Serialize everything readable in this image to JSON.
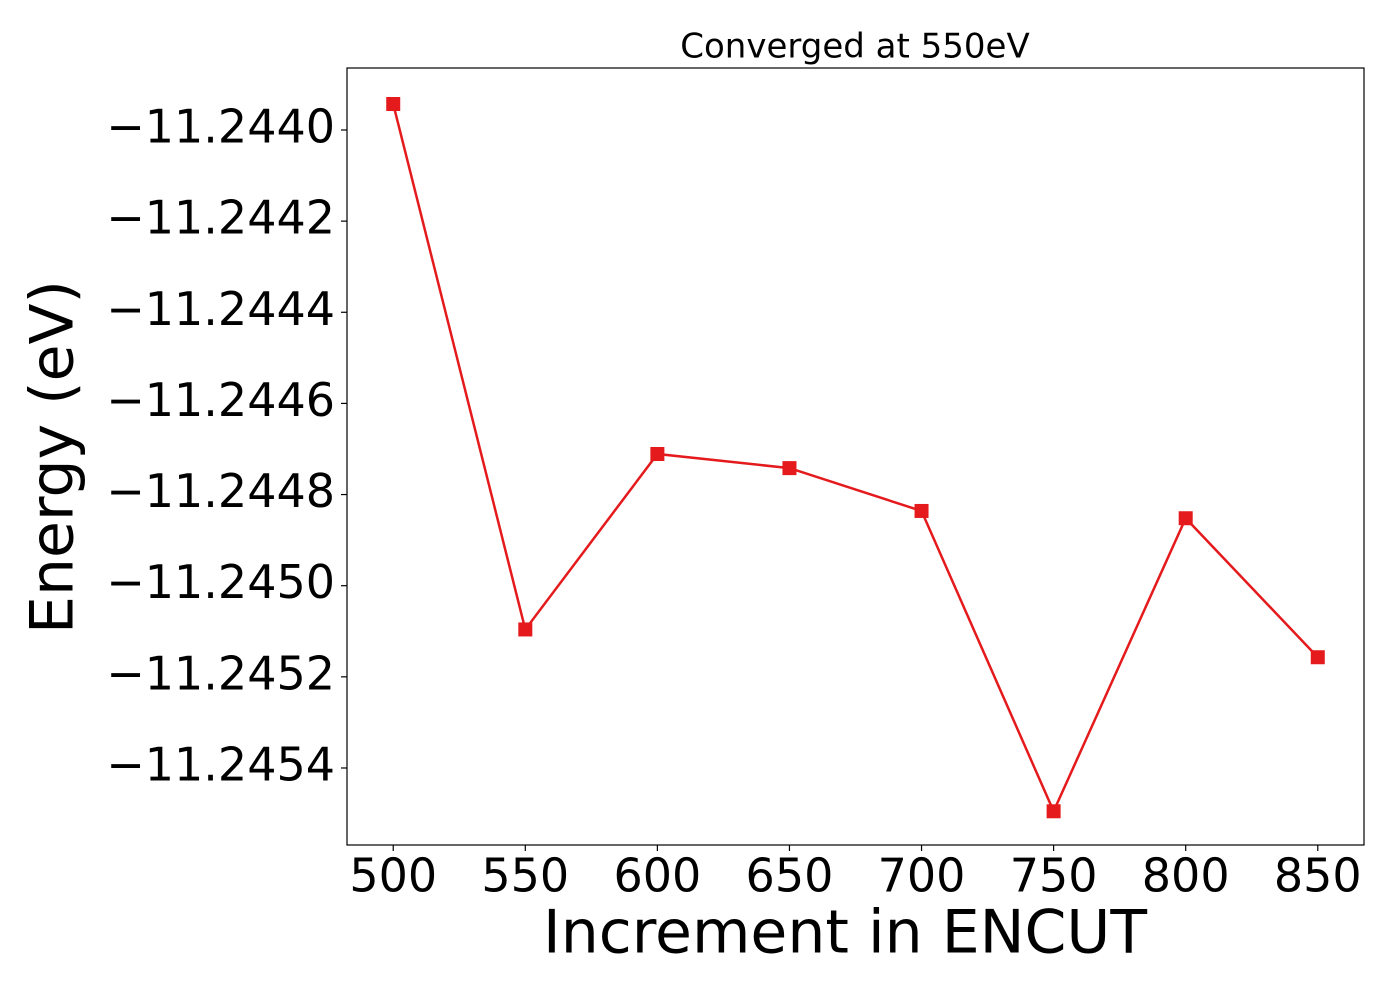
{
  "chart_data": {
    "type": "line",
    "title": "Converged at 550eV",
    "x_label": "Increment in ENCUT",
    "y_label": "Energy (eV)",
    "x": [
      500,
      550,
      600,
      650,
      700,
      750,
      800,
      850
    ],
    "series": [
      {
        "color": "#e41a1c",
        "values": [
          -11.243943,
          -11.245096,
          -11.244711,
          -11.244742,
          -11.244836,
          -11.245495,
          -11.244852,
          -11.245157
        ]
      }
    ],
    "xlim": [
      482.5,
      867.5
    ],
    "xticks": [
      500,
      550,
      600,
      650,
      700,
      750,
      800,
      850
    ],
    "ylim": [
      -11.245569,
      -11.243864
    ],
    "yticks": [
      {
        "value": -11.244,
        "label": "−11.2440"
      },
      {
        "value": -11.2442,
        "label": "−11.2442"
      },
      {
        "value": -11.2444,
        "label": "−11.2444"
      },
      {
        "value": -11.2446,
        "label": "−11.2446"
      },
      {
        "value": -11.2448,
        "label": "−11.2448"
      },
      {
        "value": -11.245,
        "label": "−11.2450"
      },
      {
        "value": -11.2452,
        "label": "−11.2452"
      },
      {
        "value": -11.2454,
        "label": "−11.2454"
      }
    ],
    "grid": false
  }
}
